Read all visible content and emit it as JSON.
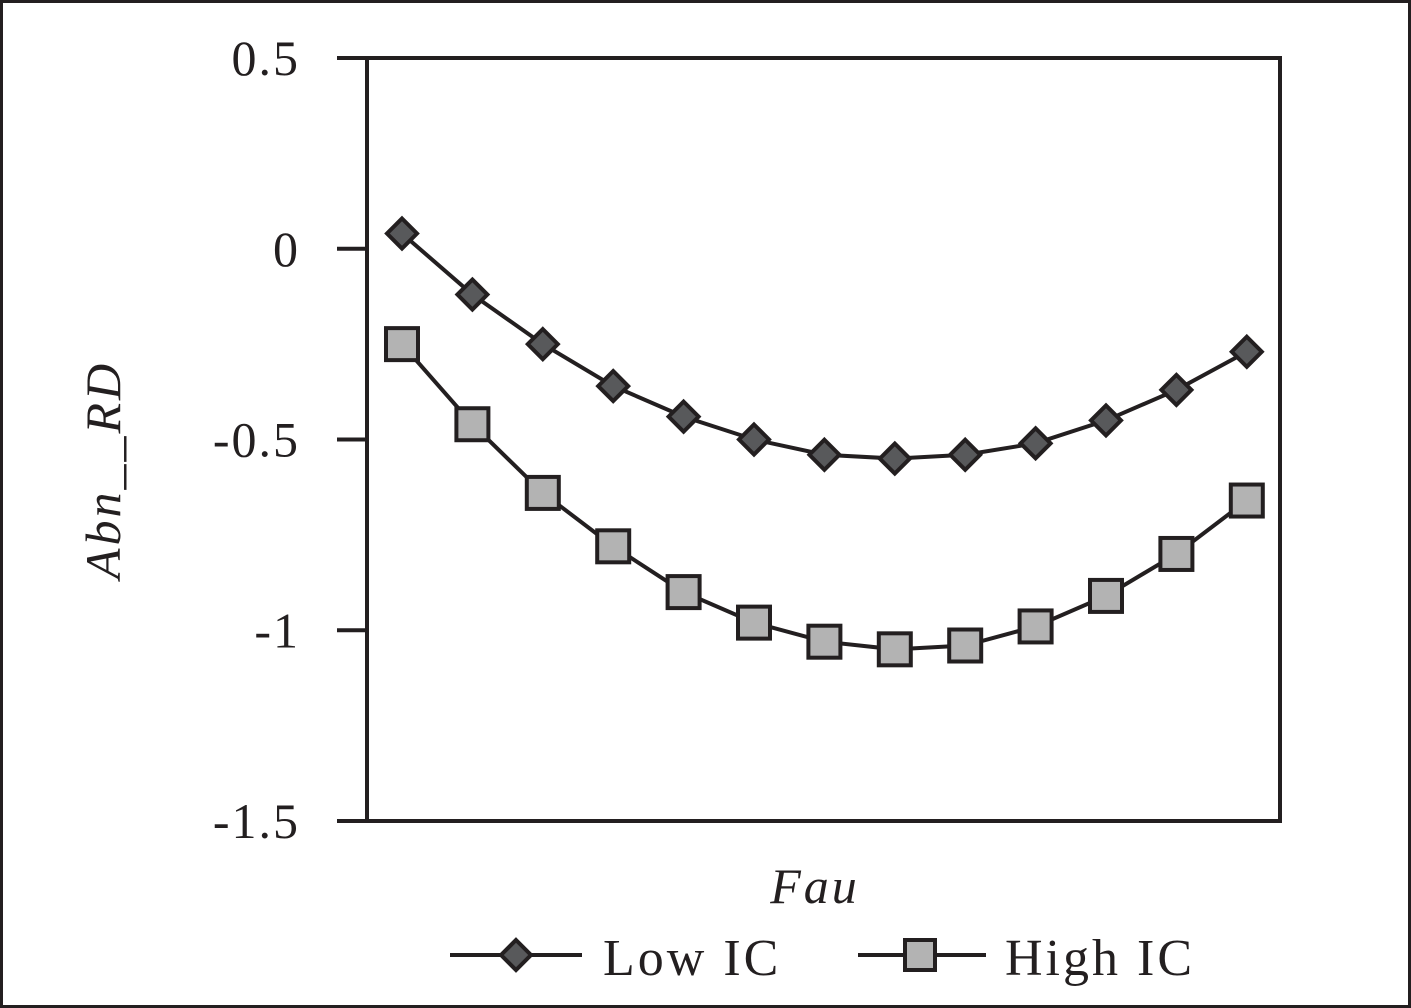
{
  "chart_data": {
    "type": "line",
    "title": "",
    "xlabel": "Fau",
    "ylabel": "Abn__RD",
    "ylim": [
      -1.5,
      0.5
    ],
    "yticks": [
      0.5,
      0,
      -0.5,
      -1,
      -1.5
    ],
    "ytick_labels": [
      "0.5",
      "0",
      "-0.5",
      "-1",
      "-1.5"
    ],
    "x": [
      1,
      2,
      3,
      4,
      5,
      6,
      7,
      8,
      9,
      10,
      11,
      12,
      13
    ],
    "xtick_labels": [],
    "grid": false,
    "legend_position": "bottom",
    "series": [
      {
        "name": "Low IC",
        "marker": "diamond",
        "color": "#58595b",
        "values": [
          0.04,
          -0.12,
          -0.25,
          -0.36,
          -0.44,
          -0.5,
          -0.54,
          -0.55,
          -0.54,
          -0.51,
          -0.45,
          -0.37,
          -0.27
        ]
      },
      {
        "name": "High IC",
        "marker": "square",
        "color": "#b3b3b3",
        "values": [
          -0.25,
          -0.46,
          -0.64,
          -0.78,
          -0.9,
          -0.98,
          -1.03,
          -1.05,
          -1.04,
          -0.99,
          -0.91,
          -0.8,
          -0.66
        ]
      }
    ]
  }
}
